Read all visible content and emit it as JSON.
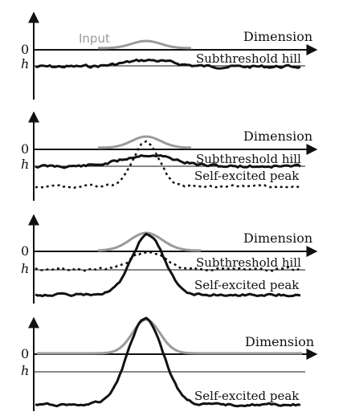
{
  "colors": {
    "axis": "#111111",
    "input_curve": "#9a9a9a",
    "activation_curve": "#111111",
    "threshold_line": "#111111"
  },
  "labels": {
    "zero": "0",
    "h": "h",
    "dimension": "Dimension",
    "input": "Input",
    "subthreshold": "Subthreshold hill",
    "self_excited": "Self-excited peak"
  },
  "panels": [
    {
      "input_amplitude": 0.3,
      "solid": "subthreshold",
      "dotted": "none",
      "labels": [
        "dimension",
        "input",
        "subthreshold"
      ]
    },
    {
      "input_amplitude": 0.5,
      "solid": "subthreshold",
      "dotted": "rising",
      "labels": [
        "dimension",
        "subthreshold",
        "self_excited"
      ]
    },
    {
      "input_amplitude": 0.8,
      "solid": "peak",
      "dotted": "subthreshold",
      "labels": [
        "dimension",
        "subthreshold",
        "self_excited"
      ]
    },
    {
      "input_amplitude": 1.0,
      "solid": "peak",
      "dotted": "none",
      "labels": [
        "dimension",
        "self_excited"
      ]
    }
  ]
}
